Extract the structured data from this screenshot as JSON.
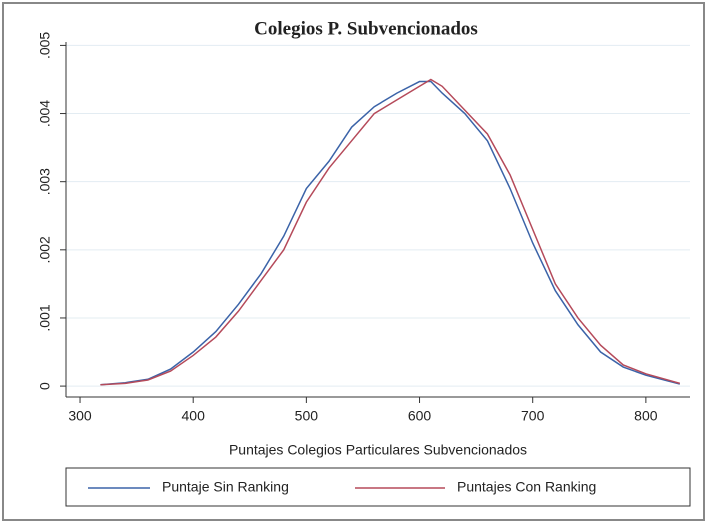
{
  "chart_data": {
    "type": "line",
    "title": "Colegios P. Subvencionados",
    "x_label": "Puntajes Colegios Particulares Subvencionados",
    "x": [
      318,
      340,
      360,
      380,
      400,
      420,
      440,
      460,
      480,
      500,
      520,
      540,
      560,
      580,
      600,
      610,
      620,
      640,
      660,
      680,
      700,
      720,
      740,
      760,
      780,
      800,
      830
    ],
    "series": [
      {
        "name": "Puntaje Sin Ranking",
        "color": "#3b63a8",
        "values": [
          2e-05,
          5e-05,
          0.0001,
          0.00025,
          0.0005,
          0.0008,
          0.0012,
          0.00165,
          0.0022,
          0.0029,
          0.0033,
          0.0038,
          0.0041,
          0.0043,
          0.00447,
          0.00447,
          0.0043,
          0.004,
          0.0036,
          0.0029,
          0.0021,
          0.0014,
          0.0009,
          0.0005,
          0.00028,
          0.00016,
          3e-05
        ]
      },
      {
        "name": "Puntajes Con Ranking",
        "color": "#b54a5a",
        "values": [
          2e-05,
          4e-05,
          9e-05,
          0.00022,
          0.00045,
          0.00072,
          0.0011,
          0.00155,
          0.002,
          0.0027,
          0.0032,
          0.0036,
          0.004,
          0.0042,
          0.0044,
          0.0045,
          0.0044,
          0.00405,
          0.0037,
          0.0031,
          0.0023,
          0.0015,
          0.001,
          0.0006,
          0.00031,
          0.00018,
          4e-05
        ]
      }
    ],
    "xlim": [
      287.6,
      839
    ],
    "xticks": [
      300,
      400,
      500,
      600,
      700,
      800
    ],
    "ylim": [
      -0.00016,
      0.00505
    ],
    "yticks": [
      0,
      {
        "value": 0.001,
        "label": ".001"
      },
      {
        "value": 0.002,
        "label": ".002"
      },
      {
        "value": 0.003,
        "label": ".003"
      },
      {
        "value": 0.004,
        "label": ".004"
      },
      {
        "value": 0.005,
        "label": ".005"
      }
    ],
    "grid": true
  }
}
